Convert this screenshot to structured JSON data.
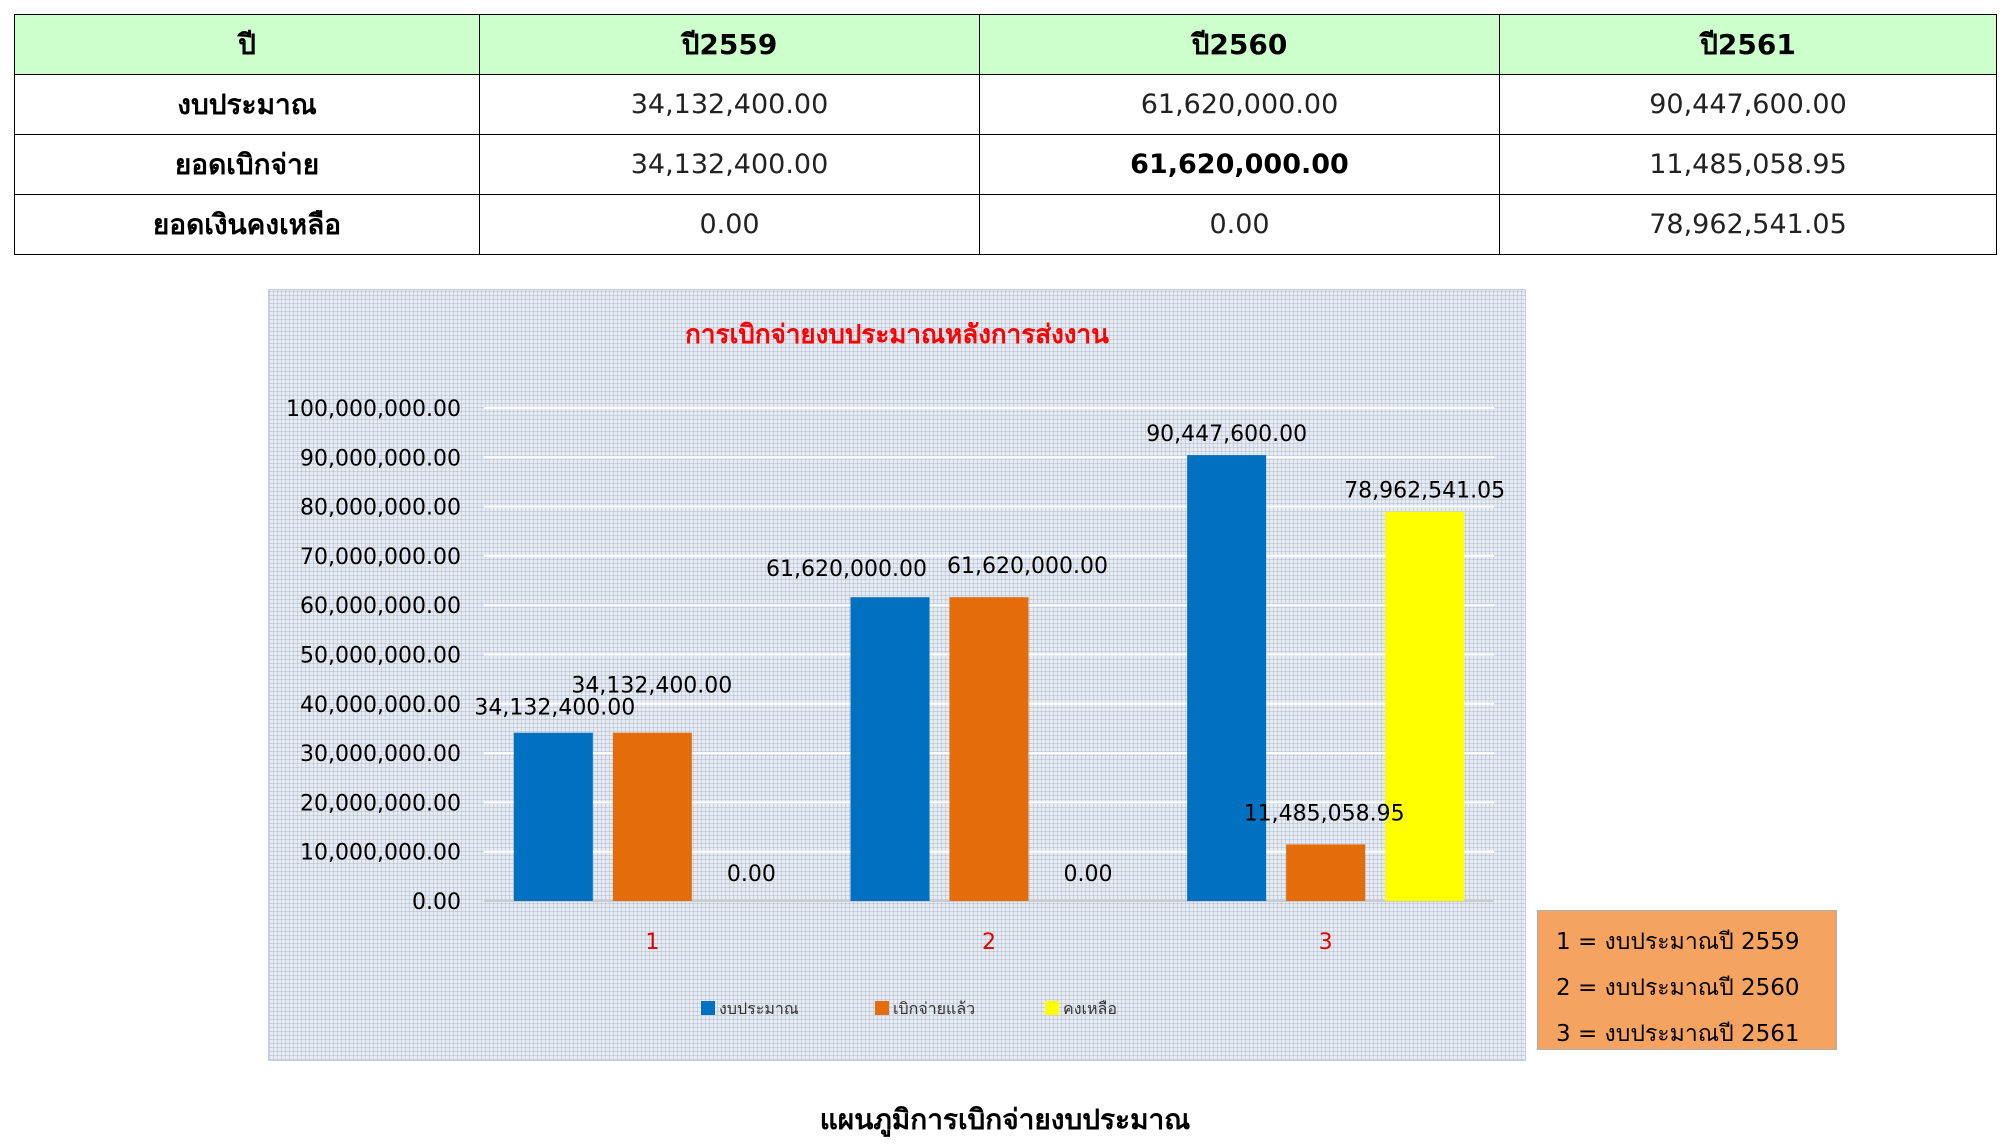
{
  "table": {
    "headers": [
      "ปี",
      "ปี2559",
      "ปี2560",
      "ปี2561"
    ],
    "rows": [
      {
        "label": "งบประมาณ",
        "values": [
          "34,132,400.00",
          "61,620,000.00",
          "90,447,600.00"
        ]
      },
      {
        "label": "ยอดเบิกจ่าย",
        "values": [
          "34,132,400.00",
          "61,620,000.00",
          "11,485,058.95"
        ]
      },
      {
        "label": "ยอดเงินคงเหลือ",
        "values": [
          "0.00",
          "0.00",
          "78,962,541.05"
        ]
      }
    ]
  },
  "chart_data": {
    "type": "bar",
    "title": "การเบิกจ่ายงบประมาณหลังการส่งงาน",
    "categories": [
      "1",
      "2",
      "3"
    ],
    "series": [
      {
        "name": "งบประมาณ",
        "color": "#0070c0",
        "values": [
          34132400,
          61620000,
          90447600
        ],
        "labels": [
          "34,132,400.00",
          "61,620,000.00",
          "90,447,600.00"
        ]
      },
      {
        "name": "เบิกจ่ายแล้ว",
        "color": "#e46c0a",
        "values": [
          34132400,
          61620000,
          11485058.95
        ],
        "labels": [
          "34,132,400.00",
          "61,620,000.00",
          "11,485,058.95"
        ]
      },
      {
        "name": "คงเหลือ",
        "color": "#ffff00",
        "values": [
          0,
          0,
          78962541.05
        ],
        "labels": [
          "0.00",
          "0.00",
          "78,962,541.05"
        ]
      }
    ],
    "ylim": [
      0,
      100000000
    ],
    "yticks": [
      "0.00",
      "10,000,000.00",
      "20,000,000.00",
      "30,000,000.00",
      "40,000,000.00",
      "50,000,000.00",
      "60,000,000.00",
      "70,000,000.00",
      "80,000,000.00",
      "90,000,000.00",
      "100,000,000.00"
    ],
    "grid": true,
    "legend": "bottom"
  },
  "note": {
    "lines": [
      "1 = งบประมาณปี 2559",
      "2 = งบประมาณปี 2560",
      "3 = งบประมาณปี 2561"
    ]
  },
  "caption": "แผนภูมิการเบิกจ่ายงบประมาณ"
}
